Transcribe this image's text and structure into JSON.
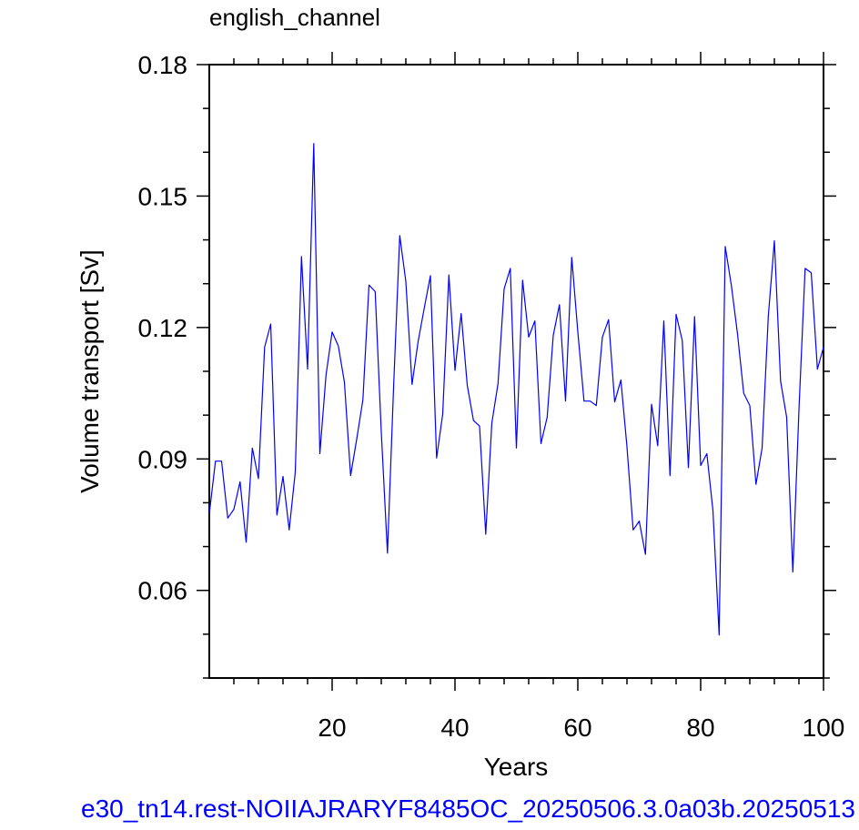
{
  "chart_data": {
    "type": "line",
    "title": "english_channel",
    "xlabel": "Years",
    "ylabel": "Volume transport [Sv]",
    "xlim": [
      0,
      100
    ],
    "ylim": [
      0.04,
      0.18
    ],
    "x_ticks": [
      20,
      40,
      60,
      80,
      100
    ],
    "x_tick_labels": [
      "20",
      "40",
      "60",
      "80",
      "100"
    ],
    "y_ticks": [
      0.06,
      0.09,
      0.12,
      0.15,
      0.18
    ],
    "y_tick_labels": [
      "0.06",
      "0.09",
      "0.12",
      "0.15",
      "0.18"
    ],
    "grid": false,
    "line_color": "#0000ff",
    "series": [
      {
        "x": [
          0,
          1,
          2,
          3,
          4,
          5,
          6,
          7,
          8,
          9,
          10,
          11,
          12,
          13,
          14,
          15,
          16,
          17,
          18,
          19,
          20,
          21,
          22,
          23,
          24,
          25,
          26,
          27,
          28,
          29,
          30,
          31,
          32,
          33,
          34,
          35,
          36,
          37,
          38,
          39,
          40,
          41,
          42,
          43,
          44,
          45,
          46,
          47,
          48,
          49,
          50,
          51,
          52,
          53,
          54,
          55,
          56,
          57,
          58,
          59,
          60,
          61,
          62,
          63,
          64,
          65,
          66,
          67,
          68,
          69,
          70,
          71,
          72,
          73,
          74,
          75,
          76,
          77,
          78,
          79,
          80,
          81,
          82,
          83,
          84,
          85,
          86,
          87,
          88,
          89,
          90,
          91,
          92,
          93,
          94,
          95,
          96,
          97,
          98,
          99,
          100
        ],
        "values": [
          0.0775,
          0.0895,
          0.0895,
          0.0765,
          0.0785,
          0.0848,
          0.071,
          0.0925,
          0.0855,
          0.1155,
          0.1208,
          0.0772,
          0.086,
          0.0738,
          0.087,
          0.1362,
          0.1105,
          0.162,
          0.0912,
          0.1092,
          0.119,
          0.1158,
          0.1075,
          0.0862,
          0.0945,
          0.1035,
          0.1297,
          0.1282,
          0.0962,
          0.0685,
          0.1062,
          0.141,
          0.1305,
          0.107,
          0.1168,
          0.1245,
          0.1318,
          0.0902,
          0.1002,
          0.132,
          0.1102,
          0.1232,
          0.1068,
          0.0988,
          0.0975,
          0.0728,
          0.0982,
          0.1072,
          0.1288,
          0.1335,
          0.0925,
          0.1308,
          0.1178,
          0.1215,
          0.0935,
          0.0995,
          0.1182,
          0.1252,
          0.1032,
          0.136,
          0.119,
          0.1032,
          0.1032,
          0.1022,
          0.1178,
          0.1218,
          0.103,
          0.108,
          0.0928,
          0.0738,
          0.0758,
          0.0682,
          0.1025,
          0.093,
          0.1215,
          0.0862,
          0.123,
          0.117,
          0.088,
          0.1225,
          0.0885,
          0.0912,
          0.0782,
          0.0498,
          0.1385,
          0.1295,
          0.1185,
          0.105,
          0.1022,
          0.0842,
          0.0925,
          0.1225,
          0.1398,
          0.1078,
          0.0995,
          0.0642,
          0.1012,
          0.1335,
          0.1325,
          0.1105,
          0.1155
        ]
      }
    ]
  },
  "footer": {
    "label": "e30_tn14.rest-NOIIAJRARYF8485OC_20250506.3.0a03b.20250513"
  }
}
